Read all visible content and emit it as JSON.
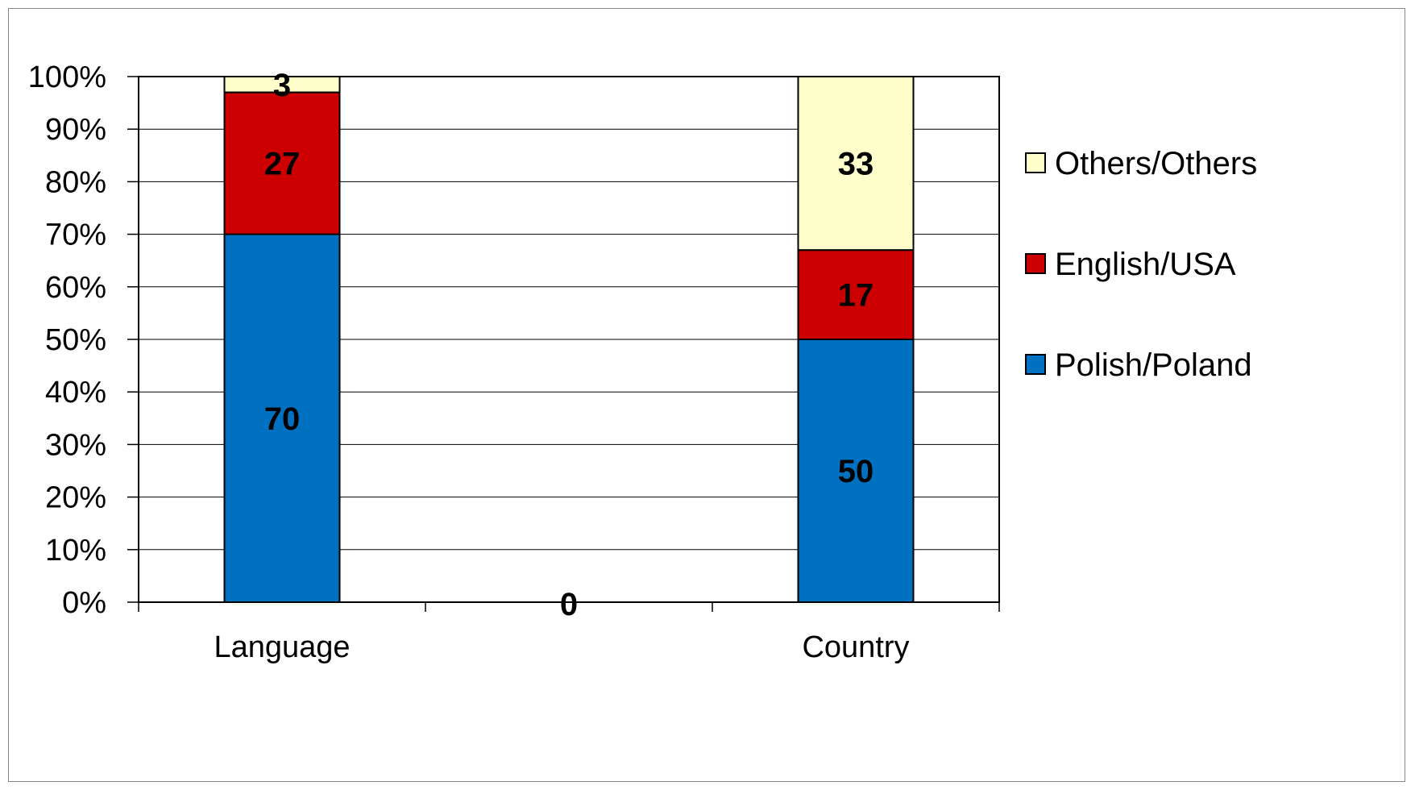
{
  "chart_data": {
    "type": "bar",
    "stacked": true,
    "percent_scale": true,
    "categories": [
      "Language",
      "",
      "Country"
    ],
    "series": [
      {
        "name": "Polish/Poland",
        "values": [
          70,
          0,
          50
        ],
        "color": "#0070C0"
      },
      {
        "name": "English/USA",
        "values": [
          27,
          0,
          17
        ],
        "color": "#CC0000"
      },
      {
        "name": "Others/Others",
        "values": [
          3,
          0,
          33
        ],
        "color": "#FFFFCC"
      }
    ],
    "y_ticks": [
      "0%",
      "10%",
      "20%",
      "30%",
      "40%",
      "50%",
      "60%",
      "70%",
      "80%",
      "90%",
      "100%"
    ],
    "ylim": [
      0,
      100
    ],
    "grid": true,
    "legend_position": "right",
    "legend_order": [
      "Others/Others",
      "English/USA",
      "Polish/Poland"
    ],
    "empty_category_label": "0"
  }
}
